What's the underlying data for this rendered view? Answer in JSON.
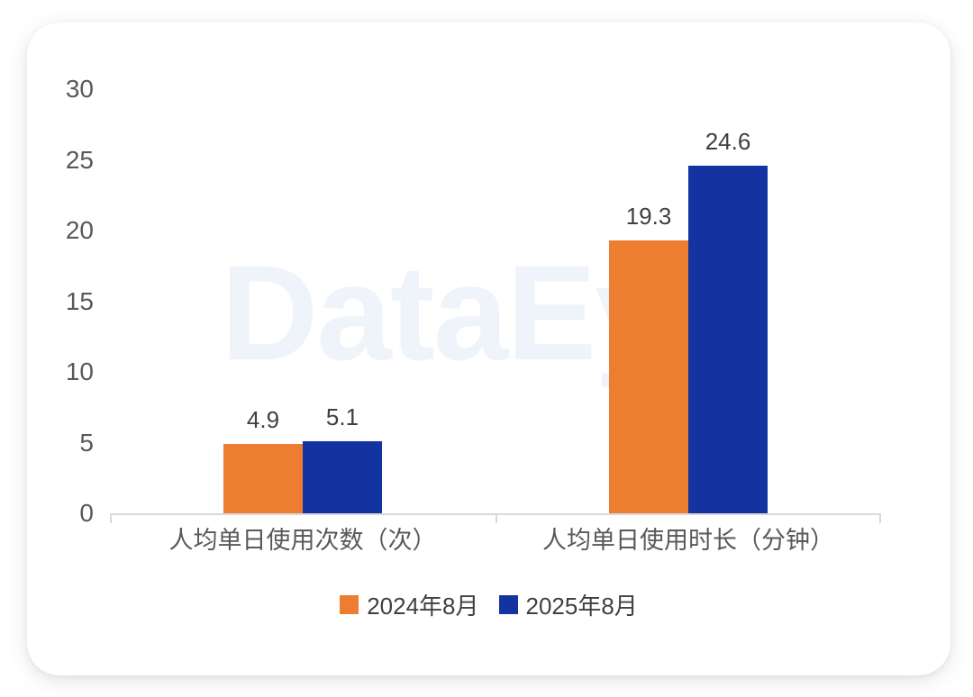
{
  "watermark": {
    "text": "DataEye",
    "color": "#EFF4FA"
  },
  "chart_data": {
    "type": "bar",
    "categories": [
      "人均单日使用次数（次）",
      "人均单日使用时长（分钟）"
    ],
    "series": [
      {
        "name": "2024年8月",
        "color": "#ED7D31",
        "values": [
          4.9,
          19.3
        ]
      },
      {
        "name": "2025年8月",
        "color": "#1233A0",
        "values": [
          5.1,
          24.6
        ]
      }
    ],
    "y_ticks": [
      0,
      5,
      10,
      15,
      20,
      25,
      30
    ],
    "ylim": [
      0,
      30
    ],
    "grid": false,
    "legend_position": "bottom",
    "value_labels": true,
    "title": "",
    "xlabel": "",
    "ylabel": ""
  },
  "colors": {
    "axis_line": "#D9D9D9",
    "tick_label": "#595959",
    "category_label": "#595959",
    "value_label": "#404040",
    "legend_text": "#404040",
    "card_background": "#FFFFFF"
  }
}
